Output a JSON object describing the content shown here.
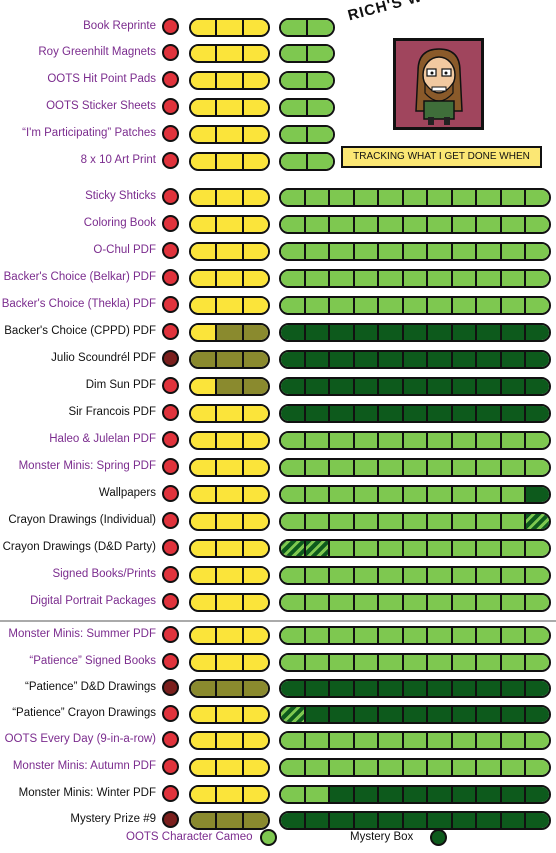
{
  "header": {
    "title": "RICH'S WORKOMETER!",
    "tagline": "TRACKING WHAT I GET DONE WHEN"
  },
  "colors": {
    "red": "#e0333c",
    "dark_red": "#7b1f1d",
    "yellow": "#fbe43a",
    "olive": "#8a8a2e",
    "light_green": "#7ec850",
    "dark_green": "#0d5a1c",
    "purple_text": "#7b2c8e"
  },
  "rows": [
    {
      "label": "Book Reprinte",
      "color": "purple",
      "dot": "red",
      "yellow": [
        "Y",
        "Y",
        "Y"
      ],
      "green": [
        "L",
        "L"
      ]
    },
    {
      "label": "Roy Greenhilt Magnets",
      "color": "purple",
      "dot": "red",
      "yellow": [
        "Y",
        "Y",
        "Y"
      ],
      "green": [
        "L",
        "L"
      ]
    },
    {
      "label": "OOTS Hit Point Pads",
      "color": "purple",
      "dot": "red",
      "yellow": [
        "Y",
        "Y",
        "Y"
      ],
      "green": [
        "L",
        "L"
      ]
    },
    {
      "label": "OOTS Sticker Sheets",
      "color": "purple",
      "dot": "red",
      "yellow": [
        "Y",
        "Y",
        "Y"
      ],
      "green": [
        "L",
        "L"
      ]
    },
    {
      "label": "“I'm Participating” Patches",
      "color": "purple",
      "dot": "red",
      "yellow": [
        "Y",
        "Y",
        "Y"
      ],
      "green": [
        "L",
        "L"
      ]
    },
    {
      "label": "8 x 10 Art Print",
      "color": "purple",
      "dot": "red",
      "yellow": [
        "Y",
        "Y",
        "Y"
      ],
      "green": [
        "L",
        "L"
      ]
    },
    {
      "label": "Sticky Shticks",
      "color": "purple",
      "dot": "red",
      "yellow": [
        "Y",
        "Y",
        "Y"
      ],
      "green": [
        "L",
        "L",
        "L",
        "L",
        "L",
        "L",
        "L",
        "L",
        "L",
        "L",
        "L"
      ]
    },
    {
      "label": "Coloring Book",
      "color": "purple",
      "dot": "red",
      "yellow": [
        "Y",
        "Y",
        "Y"
      ],
      "green": [
        "L",
        "L",
        "L",
        "L",
        "L",
        "L",
        "L",
        "L",
        "L",
        "L",
        "L"
      ]
    },
    {
      "label": "O-Chul PDF",
      "color": "purple",
      "dot": "red",
      "yellow": [
        "Y",
        "Y",
        "Y"
      ],
      "green": [
        "L",
        "L",
        "L",
        "L",
        "L",
        "L",
        "L",
        "L",
        "L",
        "L",
        "L"
      ]
    },
    {
      "label": "Backer's Choice (Belkar) PDF",
      "color": "purple",
      "dot": "red",
      "yellow": [
        "Y",
        "Y",
        "Y"
      ],
      "green": [
        "L",
        "L",
        "L",
        "L",
        "L",
        "L",
        "L",
        "L",
        "L",
        "L",
        "L"
      ]
    },
    {
      "label": "Backer's Choice (Thekla) PDF",
      "color": "purple",
      "dot": "red",
      "yellow": [
        "Y",
        "Y",
        "Y"
      ],
      "green": [
        "L",
        "L",
        "L",
        "L",
        "L",
        "L",
        "L",
        "L",
        "L",
        "L",
        "L"
      ]
    },
    {
      "label": "Backer's Choice (CPPD) PDF",
      "color": "black",
      "dot": "red",
      "yellow": [
        "Y",
        "O",
        "O"
      ],
      "green": [
        "D",
        "D",
        "D",
        "D",
        "D",
        "D",
        "D",
        "D",
        "D",
        "D",
        "D"
      ]
    },
    {
      "label": "Julio Scoundrél PDF",
      "color": "black",
      "dot": "darkred",
      "yellow": [
        "O",
        "O",
        "O"
      ],
      "green": [
        "D",
        "D",
        "D",
        "D",
        "D",
        "D",
        "D",
        "D",
        "D",
        "D",
        "D"
      ]
    },
    {
      "label": "Dim Sun PDF",
      "color": "black",
      "dot": "red",
      "yellow": [
        "Y",
        "O",
        "O"
      ],
      "green": [
        "D",
        "D",
        "D",
        "D",
        "D",
        "D",
        "D",
        "D",
        "D",
        "D",
        "D"
      ]
    },
    {
      "label": "Sir Francois  PDF",
      "color": "black",
      "dot": "red",
      "yellow": [
        "Y",
        "Y",
        "Y"
      ],
      "green": [
        "D",
        "D",
        "D",
        "D",
        "D",
        "D",
        "D",
        "D",
        "D",
        "D",
        "D"
      ]
    },
    {
      "label": "Haleo & Julelan PDF",
      "color": "purple",
      "dot": "red",
      "yellow": [
        "Y",
        "Y",
        "Y"
      ],
      "green": [
        "L",
        "L",
        "L",
        "L",
        "L",
        "L",
        "L",
        "L",
        "L",
        "L",
        "L"
      ]
    },
    {
      "label": "Monster Minis: Spring PDF",
      "color": "purple",
      "dot": "red",
      "yellow": [
        "Y",
        "Y",
        "Y"
      ],
      "green": [
        "L",
        "L",
        "L",
        "L",
        "L",
        "L",
        "L",
        "L",
        "L",
        "L",
        "L"
      ]
    },
    {
      "label": "Wallpapers",
      "color": "black",
      "dot": "red",
      "yellow": [
        "Y",
        "Y",
        "Y"
      ],
      "green": [
        "L",
        "L",
        "L",
        "L",
        "L",
        "L",
        "L",
        "L",
        "L",
        "L",
        "D"
      ]
    },
    {
      "label": "Crayon Drawings (Individual)",
      "color": "black",
      "dot": "red",
      "yellow": [
        "Y",
        "Y",
        "Y"
      ],
      "green": [
        "L",
        "L",
        "L",
        "L",
        "L",
        "L",
        "L",
        "L",
        "L",
        "L",
        "S"
      ]
    },
    {
      "label": "Crayon Drawings (D&D Party)",
      "color": "black",
      "dot": "red",
      "yellow": [
        "Y",
        "Y",
        "Y"
      ],
      "green": [
        "S",
        "S",
        "L",
        "L",
        "L",
        "L",
        "L",
        "L",
        "L",
        "L",
        "L"
      ]
    },
    {
      "label": "Signed Books/Prints",
      "color": "purple",
      "dot": "red",
      "yellow": [
        "Y",
        "Y",
        "Y"
      ],
      "green": [
        "L",
        "L",
        "L",
        "L",
        "L",
        "L",
        "L",
        "L",
        "L",
        "L",
        "L"
      ]
    },
    {
      "label": "Digital Portrait Packages",
      "color": "purple",
      "dot": "red",
      "yellow": [
        "Y",
        "Y",
        "Y"
      ],
      "green": [
        "L",
        "L",
        "L",
        "L",
        "L",
        "L",
        "L",
        "L",
        "L",
        "L",
        "L"
      ]
    },
    {
      "label": "Monster Minis: Summer PDF",
      "color": "purple",
      "dot": "red",
      "yellow": [
        "Y",
        "Y",
        "Y"
      ],
      "green": [
        "L",
        "L",
        "L",
        "L",
        "L",
        "L",
        "L",
        "L",
        "L",
        "L",
        "L"
      ]
    },
    {
      "label": "“Patience” Signed Books",
      "color": "purple",
      "dot": "red",
      "yellow": [
        "Y",
        "Y",
        "Y"
      ],
      "green": [
        "L",
        "L",
        "L",
        "L",
        "L",
        "L",
        "L",
        "L",
        "L",
        "L",
        "L"
      ]
    },
    {
      "label": "“Patience” D&D Drawings",
      "color": "black",
      "dot": "darkred",
      "yellow": [
        "O",
        "O",
        "O"
      ],
      "green": [
        "D",
        "D",
        "D",
        "D",
        "D",
        "D",
        "D",
        "D",
        "D",
        "D",
        "D"
      ]
    },
    {
      "label": "“Patience” Crayon Drawings",
      "color": "black",
      "dot": "red",
      "yellow": [
        "Y",
        "Y",
        "Y"
      ],
      "green": [
        "S",
        "D",
        "D",
        "D",
        "D",
        "D",
        "D",
        "D",
        "D",
        "D",
        "D"
      ]
    },
    {
      "label": "OOTS Every Day (9-in-a-row)",
      "color": "purple",
      "dot": "red",
      "yellow": [
        "Y",
        "Y",
        "Y"
      ],
      "green": [
        "L",
        "L",
        "L",
        "L",
        "L",
        "L",
        "L",
        "L",
        "L",
        "L",
        "L"
      ]
    },
    {
      "label": "Monster Minis: Autumn PDF",
      "color": "purple",
      "dot": "red",
      "yellow": [
        "Y",
        "Y",
        "Y"
      ],
      "green": [
        "L",
        "L",
        "L",
        "L",
        "L",
        "L",
        "L",
        "L",
        "L",
        "L",
        "L"
      ]
    },
    {
      "label": "Monster Minis: Winter PDF",
      "color": "black",
      "dot": "red",
      "yellow": [
        "Y",
        "Y",
        "Y"
      ],
      "green": [
        "L",
        "L",
        "D",
        "D",
        "D",
        "D",
        "D",
        "D",
        "D",
        "D",
        "D"
      ]
    },
    {
      "label": "Mystery Prize #9",
      "color": "black",
      "dot": "darkred",
      "yellow": [
        "O",
        "O",
        "O"
      ],
      "green": [
        "D",
        "D",
        "D",
        "D",
        "D",
        "D",
        "D",
        "D",
        "D",
        "D",
        "D"
      ]
    }
  ],
  "legend": {
    "cameo_label": "OOTS Character Cameo",
    "mystery_label": "Mystery Box"
  }
}
